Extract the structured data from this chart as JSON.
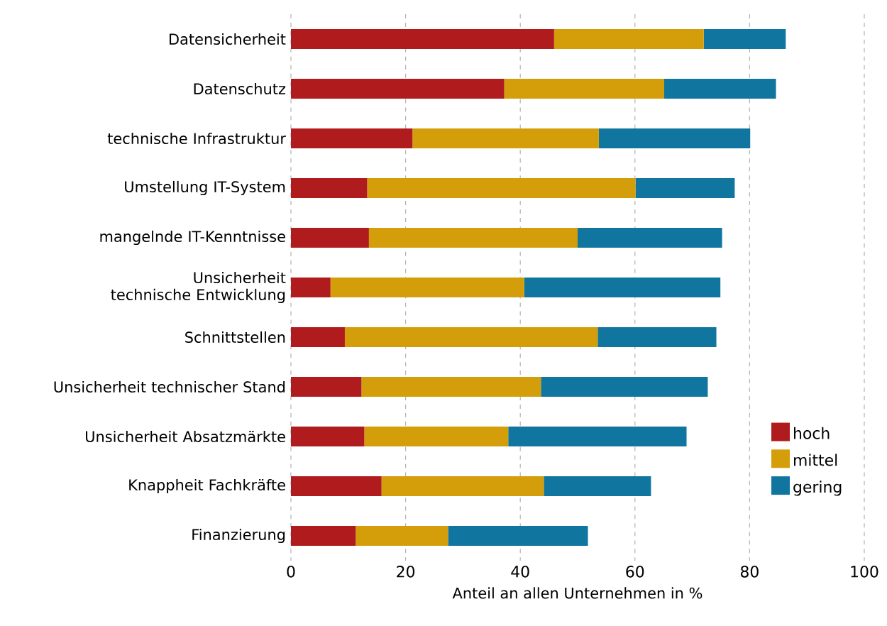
{
  "chart_data": {
    "type": "bar",
    "orientation": "horizontal",
    "stacked": true,
    "xlabel": "Anteil an allen Unternehmen in %",
    "categories": [
      "Datensicherheit",
      "Datenschutz",
      "technische Infrastruktur",
      "Umstellung IT-System",
      "mangelnde IT-Kenntnisse",
      "Unsicherheit technische Entwicklung",
      "Schnittstellen",
      "Unsicherheit technischer Stand",
      "Unsicherheit Absatzmärkte",
      "Knappheit Fachkräfte",
      "Finanzierung"
    ],
    "series": [
      {
        "name": "hoch",
        "color": "#b01b1e",
        "values": [
          45.9,
          37.2,
          21.2,
          13.3,
          13.6,
          6.9,
          9.4,
          12.3,
          12.8,
          15.8,
          11.3
        ]
      },
      {
        "name": "mittel",
        "color": "#d39e09",
        "values": [
          26.1,
          27.9,
          32.5,
          46.8,
          36.4,
          33.8,
          44.1,
          31.3,
          25.1,
          28.3,
          16.1
        ]
      },
      {
        "name": "gering",
        "color": "#11769f",
        "values": [
          14.3,
          19.5,
          26.4,
          17.3,
          25.2,
          34.2,
          20.7,
          29.1,
          31.1,
          18.7,
          24.4
        ]
      }
    ],
    "xlim": [
      0,
      100
    ],
    "xticks": [
      0,
      20,
      40,
      60,
      80,
      100
    ],
    "grid": "x",
    "legend": "bottom right"
  }
}
